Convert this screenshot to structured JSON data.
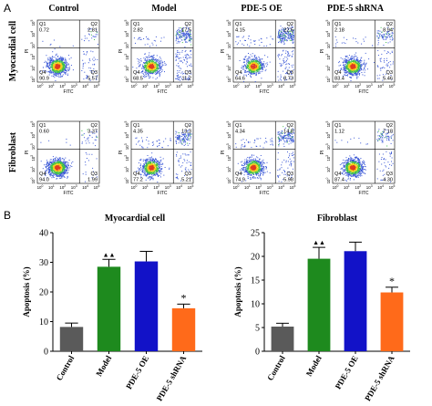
{
  "panel_a": {
    "letter": "A",
    "column_titles": [
      "Control",
      "Model",
      "PDE-5  OE",
      "PDE-5  shRNA"
    ],
    "row_titles": [
      "Myocardial cell",
      "Fibroblast"
    ],
    "x_axis_label": "FITC",
    "y_axis_label": "PI",
    "tick_base": "10",
    "tick_exponents": [
      "0",
      "1",
      "2",
      "3",
      "4",
      "5"
    ],
    "quadrant_names": [
      "Q1",
      "Q2",
      "Q3",
      "Q4"
    ],
    "plots": [
      [
        {
          "q1": "0.72",
          "q2": "2.81",
          "q3": "5.57",
          "q4": "90.9"
        },
        {
          "q1": "2.82",
          "q2": "17.5",
          "q3": "11.2",
          "q4": "68.5"
        },
        {
          "q1": "4.15",
          "q2": "22.5",
          "q3": "8.73",
          "q4": "64.6"
        },
        {
          "q1": "2.18",
          "q2": "8.94",
          "q3": "5.46",
          "q4": "83.4"
        }
      ],
      [
        {
          "q1": "0.60",
          "q2": "3.37",
          "q3": "1.99",
          "q4": "94.0"
        },
        {
          "q1": "4.35",
          "q2": "13.3",
          "q3": "5.21",
          "q4": "77.2"
        },
        {
          "q1": "4.34",
          "q2": "14.8",
          "q3": "5.98",
          "q4": "74.9"
        },
        {
          "q1": "1.12",
          "q2": "7.18",
          "q3": "4.30",
          "q4": "87.4"
        }
      ]
    ]
  },
  "panel_b": {
    "letter": "B"
  },
  "chart_data": [
    {
      "type": "bar",
      "title": "Myocardial cell",
      "ylabel": "Apoptosis (%)",
      "xlabel": "",
      "categories": [
        "Control",
        "Model",
        "PDE-5 OE",
        "PDE-5 shRNA"
      ],
      "values": [
        8.2,
        28.5,
        30.3,
        14.5
      ],
      "errors": [
        1.3,
        2.5,
        3.4,
        1.4
      ],
      "annotations": [
        "",
        "▲▲",
        "",
        "*"
      ],
      "colors": [
        "#5a5a5a",
        "#1e8a1e",
        "#1212c8",
        "#ff6a1a"
      ],
      "ylim": [
        0,
        40
      ],
      "yticks": [
        "0",
        "10",
        "20",
        "30",
        "40"
      ],
      "grid": false
    },
    {
      "type": "bar",
      "title": "Fibroblast",
      "ylabel": "Apoptosis (%)",
      "xlabel": "",
      "categories": [
        "Control",
        "Model",
        "PDE-5 OE",
        "PDE-5 shRNA"
      ],
      "values": [
        5.2,
        19.5,
        21.1,
        12.4
      ],
      "errors": [
        0.7,
        2.4,
        1.9,
        1.1
      ],
      "annotations": [
        "",
        "▲▲",
        "",
        "*"
      ],
      "colors": [
        "#5a5a5a",
        "#1e8a1e",
        "#1212c8",
        "#ff6a1a"
      ],
      "ylim": [
        0,
        25
      ],
      "yticks": [
        "0",
        "5",
        "10",
        "15",
        "20",
        "25"
      ],
      "grid": false
    }
  ]
}
